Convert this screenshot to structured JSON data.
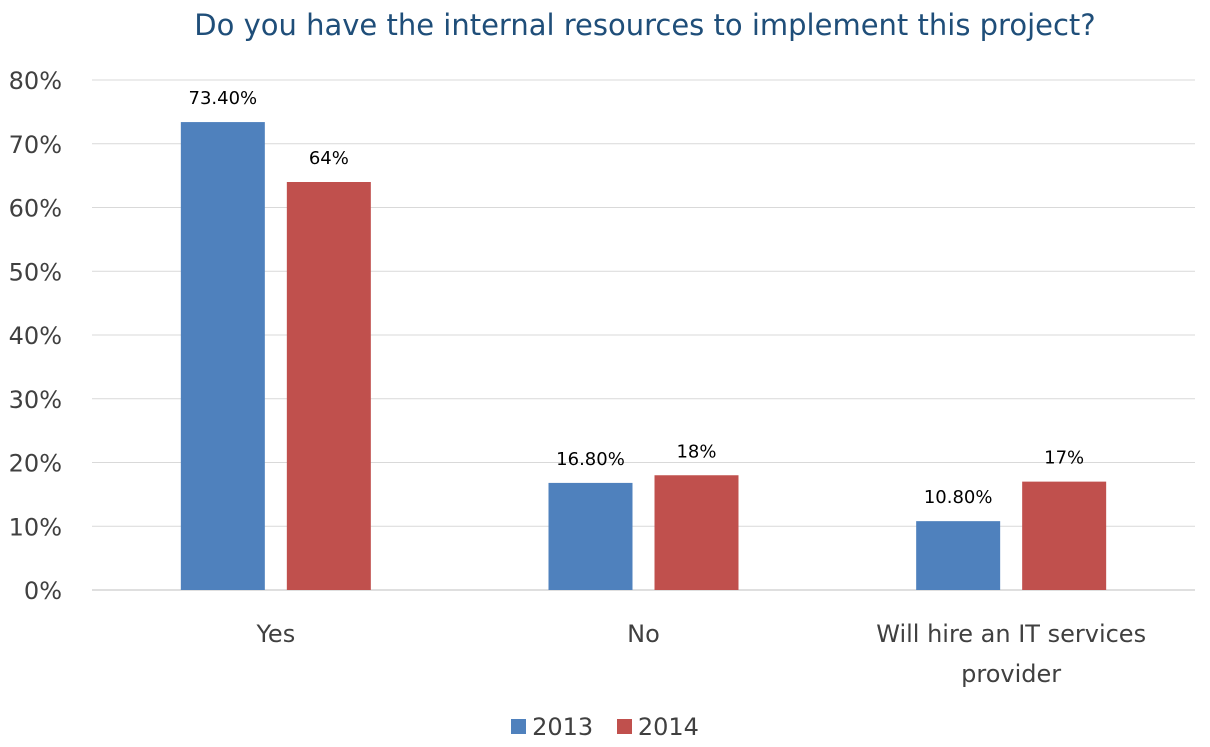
{
  "chart_data": {
    "type": "bar",
    "title": "Do you have the internal resources to implement this project?",
    "categories": [
      "Yes",
      "No",
      "Will hire an IT services provider"
    ],
    "series": [
      {
        "name": "2013",
        "values": [
          73.4,
          16.8,
          10.8
        ],
        "labels": [
          "73.40%",
          "16.80%",
          "10.80%"
        ],
        "color": "#4F81BD"
      },
      {
        "name": "2014",
        "values": [
          64,
          18,
          17
        ],
        "labels": [
          "64%",
          "18%",
          "17%"
        ],
        "color": "#C0504D"
      }
    ],
    "ylim": [
      0,
      80
    ],
    "yticks": [
      "0%",
      "10%",
      "20%",
      "30%",
      "40%",
      "50%",
      "60%",
      "70%",
      "80%"
    ],
    "xlabel": "",
    "ylabel": "",
    "grid": true,
    "legend_position": "bottom"
  }
}
